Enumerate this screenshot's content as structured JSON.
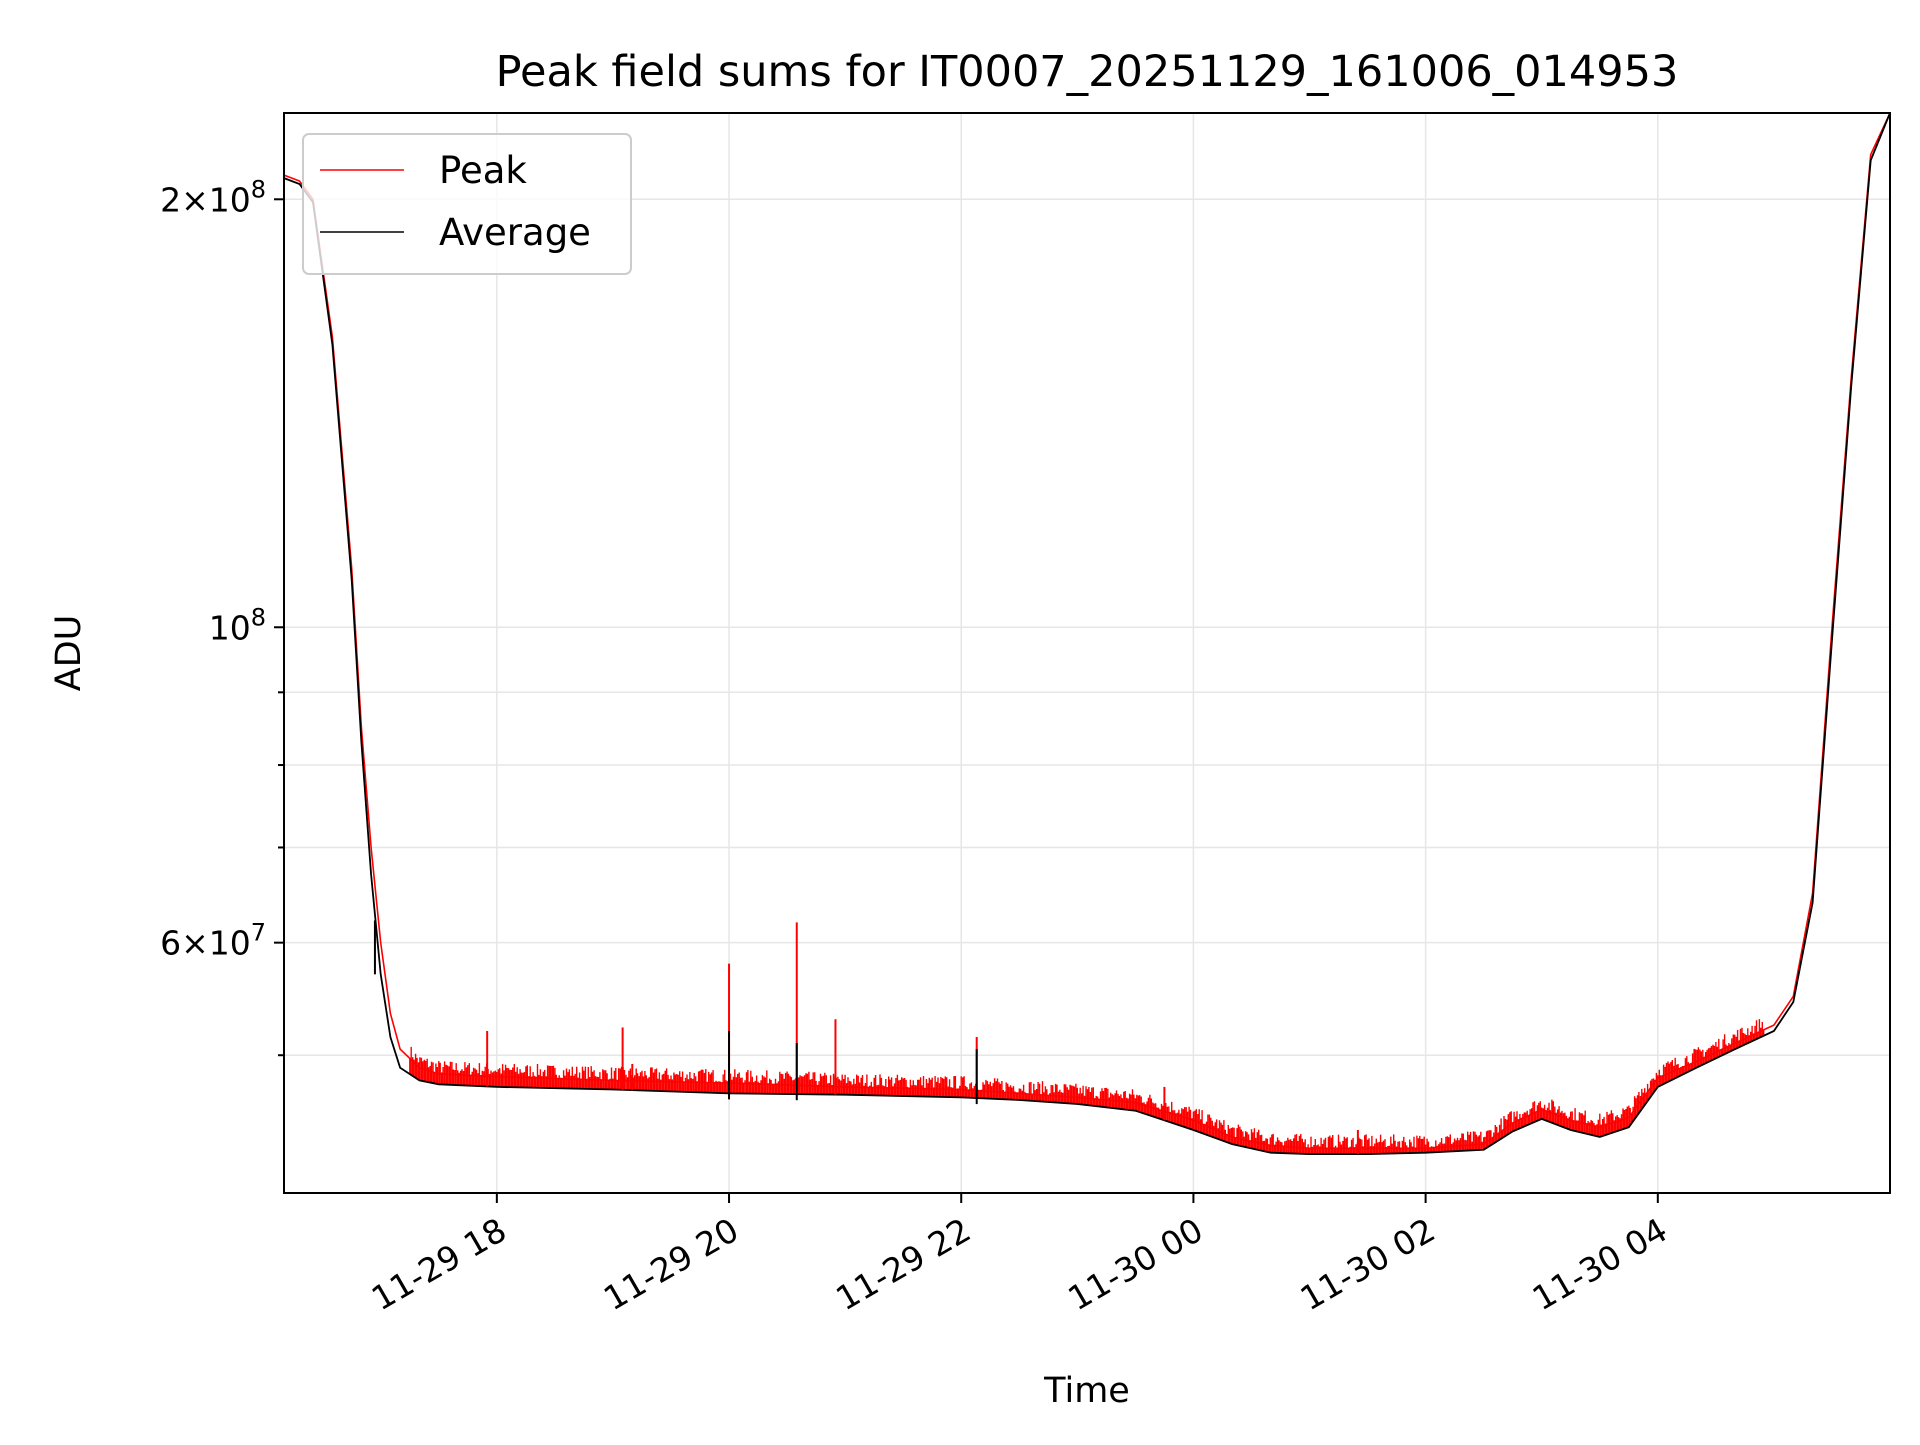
{
  "chart_data": {
    "type": "line",
    "title": "Peak field sums for IT0007_20251129_161006_014953",
    "xlabel": "Time",
    "ylabel": "ADU",
    "x_range": [
      "2025-11-29 16:10",
      "2025-11-30 06:00"
    ],
    "y_scale": "log",
    "y_range": [
      40000000,
      230000000
    ],
    "grid": true,
    "legend_position": "top-left",
    "x_ticks": [
      {
        "value": "2025-11-29 18:00",
        "label": "11-29 18"
      },
      {
        "value": "2025-11-29 20:00",
        "label": "11-29 20"
      },
      {
        "value": "2025-11-29 22:00",
        "label": "11-29 22"
      },
      {
        "value": "2025-11-30 00:00",
        "label": "11-30 00"
      },
      {
        "value": "2025-11-30 02:00",
        "label": "11-30 02"
      },
      {
        "value": "2025-11-30 04:00",
        "label": "11-30 04"
      }
    ],
    "y_major_ticks": [
      {
        "value": 60000000,
        "mantissa": "6",
        "exponent": "7"
      },
      {
        "value": 100000000,
        "mantissa": "",
        "exponent": "8"
      },
      {
        "value": 200000000,
        "mantissa": "2",
        "exponent": "8"
      }
    ],
    "y_minor_ticks": [
      50000000,
      70000000,
      80000000,
      90000000
    ],
    "series": [
      {
        "name": "Peak",
        "color": "#ff0000",
        "x": [
          "2025-11-29 16:10",
          "2025-11-29 16:18",
          "2025-11-29 16:25",
          "2025-11-29 16:35",
          "2025-11-29 16:45",
          "2025-11-29 16:50",
          "2025-11-29 16:55",
          "2025-11-29 17:00",
          "2025-11-29 17:05",
          "2025-11-29 17:10",
          "2025-11-29 17:20",
          "2025-11-29 17:30",
          "2025-11-29 18:00",
          "2025-11-29 19:00",
          "2025-11-29 20:00",
          "2025-11-29 21:00",
          "2025-11-29 22:00",
          "2025-11-29 22:30",
          "2025-11-29 23:00",
          "2025-11-29 23:30",
          "2025-11-30 00:00",
          "2025-11-30 00:20",
          "2025-11-30 00:40",
          "2025-11-30 01:00",
          "2025-11-30 01:30",
          "2025-11-30 02:00",
          "2025-11-30 02:30",
          "2025-11-30 02:45",
          "2025-11-30 03:00",
          "2025-11-30 03:15",
          "2025-11-30 03:30",
          "2025-11-30 03:45",
          "2025-11-30 04:00",
          "2025-11-30 04:20",
          "2025-11-30 04:40",
          "2025-11-30 05:00",
          "2025-11-30 05:10",
          "2025-11-30 05:20",
          "2025-11-30 05:30",
          "2025-11-30 05:40",
          "2025-11-30 05:50",
          "2025-11-30 06:00"
        ],
        "y": [
          208000000,
          206000000,
          200000000,
          160000000,
          110000000,
          85000000,
          70000000,
          60000000,
          53500000,
          50500000,
          49000000,
          48500000,
          48300000,
          48000000,
          47800000,
          47500000,
          47300000,
          47000000,
          46700000,
          46300000,
          45000000,
          43800000,
          43200000,
          43000000,
          43000000,
          43000000,
          43300000,
          44800000,
          45800000,
          45000000,
          44500000,
          45200000,
          48200000,
          49500000,
          51000000,
          52500000,
          55000000,
          65000000,
          100000000,
          150000000,
          215000000,
          230000000
        ]
      },
      {
        "name": "Average",
        "color": "#000000",
        "x": [
          "2025-11-29 16:10",
          "2025-11-29 16:18",
          "2025-11-29 16:25",
          "2025-11-29 16:35",
          "2025-11-29 16:45",
          "2025-11-29 16:50",
          "2025-11-29 16:55",
          "2025-11-29 17:00",
          "2025-11-29 17:05",
          "2025-11-29 17:10",
          "2025-11-29 17:20",
          "2025-11-29 17:30",
          "2025-11-29 18:00",
          "2025-11-29 19:00",
          "2025-11-29 20:00",
          "2025-11-29 21:00",
          "2025-11-29 22:00",
          "2025-11-29 22:30",
          "2025-11-29 23:00",
          "2025-11-29 23:30",
          "2025-11-30 00:00",
          "2025-11-30 00:20",
          "2025-11-30 00:40",
          "2025-11-30 01:00",
          "2025-11-30 01:30",
          "2025-11-30 02:00",
          "2025-11-30 02:30",
          "2025-11-30 02:45",
          "2025-11-30 03:00",
          "2025-11-30 03:15",
          "2025-11-30 03:30",
          "2025-11-30 03:45",
          "2025-11-30 04:00",
          "2025-11-30 04:20",
          "2025-11-30 04:40",
          "2025-11-30 05:00",
          "2025-11-30 05:10",
          "2025-11-30 05:20",
          "2025-11-30 05:30",
          "2025-11-30 05:40",
          "2025-11-30 05:50",
          "2025-11-30 06:00"
        ],
        "y": [
          207000000,
          205000000,
          199000000,
          158000000,
          108000000,
          83000000,
          67000000,
          57000000,
          51500000,
          49000000,
          48000000,
          47700000,
          47500000,
          47300000,
          47000000,
          46900000,
          46700000,
          46500000,
          46200000,
          45700000,
          44300000,
          43300000,
          42700000,
          42600000,
          42600000,
          42700000,
          42900000,
          44200000,
          45100000,
          44300000,
          43800000,
          44500000,
          47500000,
          49000000,
          50500000,
          52000000,
          54500000,
          64000000,
          98000000,
          148000000,
          213000000,
          230000000
        ]
      }
    ],
    "peak_spikes": [
      {
        "x": "2025-11-29 17:55",
        "y": 52000000
      },
      {
        "x": "2025-11-29 19:05",
        "y": 52300000
      },
      {
        "x": "2025-11-29 19:10",
        "y": 49300000
      },
      {
        "x": "2025-11-29 20:00",
        "y": 58000000
      },
      {
        "x": "2025-11-29 20:35",
        "y": 62000000
      },
      {
        "x": "2025-11-29 20:55",
        "y": 53000000
      },
      {
        "x": "2025-11-29 22:08",
        "y": 51500000
      },
      {
        "x": "2025-11-29 23:45",
        "y": 47500000
      },
      {
        "x": "2025-11-30 01:25",
        "y": 44300000
      }
    ],
    "average_spikes": [
      {
        "x": "2025-11-29 20:00",
        "y": 52000000
      },
      {
        "x": "2025-11-29 20:35",
        "y": 51000000
      },
      {
        "x": "2025-11-29 22:08",
        "y": 50500000
      },
      {
        "x": "2025-11-29 16:57",
        "y": 57000000
      }
    ]
  }
}
